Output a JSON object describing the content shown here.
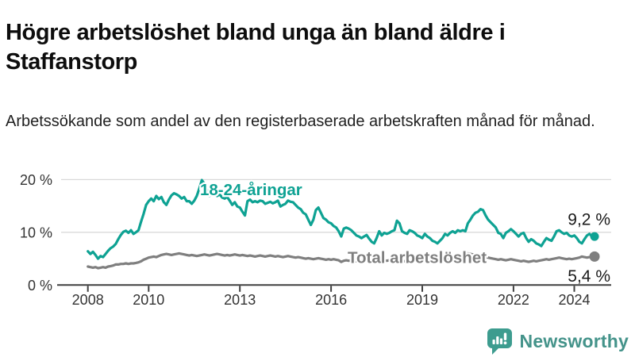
{
  "header": {
    "title": "Högre arbetslöshet bland unga än bland äldre i Staffanstorp",
    "subtitle": "Arbetssökande som andel av den registerbaserade arbetskraften månad för månad."
  },
  "chart_data": {
    "type": "line",
    "title": "",
    "xlabel": "",
    "ylabel": "",
    "x_axis": {
      "ticks": [
        2008,
        2010,
        2013,
        2016,
        2019,
        2022,
        2024
      ],
      "tick_labels": [
        "2008",
        "2010",
        "2013",
        "2016",
        "2019",
        "2022",
        "2024"
      ],
      "range": [
        2007.9,
        2025.2
      ]
    },
    "y_axis": {
      "ticks": [
        0,
        10,
        20
      ],
      "tick_labels": [
        "0 %",
        "10 %",
        "20 %"
      ],
      "range": [
        0,
        21
      ],
      "grid": true,
      "grid_color": "#d9d9d9",
      "axis_color": "#3f3f3f",
      "label_color": "#333333"
    },
    "series": [
      {
        "name": "18-24-åringar",
        "color": "#0ea293",
        "end_label": "9,2 %",
        "end_value": 9.2,
        "start_year": 2008,
        "step_months": 1,
        "values": [
          6.4,
          5.9,
          6.3,
          5.7,
          5.0,
          5.5,
          5.3,
          5.9,
          6.5,
          7.0,
          7.3,
          7.8,
          8.7,
          9.5,
          10.1,
          10.3,
          9.9,
          10.4,
          9.7,
          10.0,
          10.4,
          12.0,
          13.5,
          15.2,
          15.9,
          16.4,
          15.9,
          16.9,
          16.3,
          16.7,
          15.7,
          15.2,
          16.2,
          17.0,
          17.4,
          17.2,
          16.9,
          16.4,
          16.7,
          15.9,
          15.9,
          15.4,
          16.0,
          16.9,
          18.3,
          19.9,
          19.2,
          18.0,
          16.9,
          17.7,
          17.2,
          16.9,
          17.2,
          16.6,
          16.4,
          16.7,
          16.0,
          15.2,
          15.7,
          14.9,
          14.7,
          13.9,
          13.2,
          15.9,
          16.2,
          15.7,
          15.9,
          15.7,
          16.0,
          15.9,
          15.4,
          15.6,
          15.8,
          15.5,
          15.7,
          16.0,
          14.9,
          15.2,
          15.4,
          16.0,
          15.8,
          15.7,
          15.2,
          14.7,
          14.4,
          13.7,
          13.4,
          12.4,
          11.4,
          12.4,
          14.2,
          14.7,
          13.7,
          12.7,
          12.4,
          11.9,
          11.7,
          11.2,
          10.9,
          10.2,
          9.2,
          10.7,
          10.9,
          10.7,
          10.4,
          9.9,
          9.4,
          9.2,
          8.9,
          9.2,
          9.5,
          8.8,
          8.2,
          7.9,
          8.9,
          10.2,
          9.4,
          9.9,
          9.7,
          9.9,
          10.2,
          10.4,
          12.2,
          11.7,
          10.2,
          9.9,
          9.7,
          10.4,
          10.2,
          9.9,
          9.4,
          9.2,
          8.9,
          9.7,
          9.2,
          8.9,
          8.4,
          8.2,
          7.9,
          8.4,
          8.9,
          9.7,
          9.4,
          9.9,
          10.2,
          9.9,
          10.4,
          10.2,
          10.4,
          10.2,
          11.7,
          12.4,
          13.2,
          13.7,
          13.9,
          14.4,
          14.2,
          13.2,
          12.4,
          11.9,
          11.4,
          10.9,
          9.9,
          9.7,
          8.9,
          9.9,
          10.2,
          10.6,
          10.2,
          9.7,
          9.2,
          9.7,
          9.9,
          8.9,
          8.2,
          8.7,
          8.4,
          7.9,
          7.7,
          7.4,
          8.2,
          8.9,
          8.6,
          8.4,
          9.2,
          10.2,
          10.4,
          10.0,
          9.7,
          9.9,
          9.4,
          9.2,
          9.4,
          8.9,
          8.2,
          7.9,
          8.7,
          9.4,
          9.7,
          9.2,
          9.2
        ]
      },
      {
        "name": "Total arbetslöshet",
        "color": "#7f7f7f",
        "end_label": "5,4 %",
        "end_value": 5.4,
        "start_year": 2008,
        "step_months": 1,
        "values": [
          3.5,
          3.4,
          3.3,
          3.4,
          3.2,
          3.3,
          3.4,
          3.3,
          3.5,
          3.6,
          3.7,
          3.9,
          3.9,
          4.0,
          4.0,
          4.1,
          4.0,
          4.1,
          4.1,
          4.2,
          4.3,
          4.5,
          4.8,
          5.0,
          5.2,
          5.3,
          5.4,
          5.3,
          5.5,
          5.7,
          5.8,
          5.9,
          5.8,
          5.7,
          5.8,
          5.9,
          6.0,
          5.9,
          5.8,
          5.7,
          5.6,
          5.7,
          5.6,
          5.5,
          5.6,
          5.7,
          5.8,
          5.7,
          5.6,
          5.7,
          5.8,
          5.9,
          5.8,
          5.7,
          5.6,
          5.7,
          5.6,
          5.7,
          5.8,
          5.7,
          5.6,
          5.7,
          5.6,
          5.5,
          5.6,
          5.5,
          5.4,
          5.5,
          5.6,
          5.5,
          5.4,
          5.5,
          5.6,
          5.5,
          5.4,
          5.5,
          5.4,
          5.3,
          5.4,
          5.5,
          5.4,
          5.3,
          5.2,
          5.3,
          5.2,
          5.1,
          5.0,
          5.1,
          5.0,
          4.9,
          5.0,
          5.1,
          5.0,
          4.9,
          4.8,
          4.9,
          4.8,
          4.9,
          4.8,
          4.7,
          4.4,
          4.6,
          4.7,
          4.6,
          4.7,
          4.6,
          4.5,
          4.6,
          4.6,
          4.7,
          4.6,
          4.5,
          4.6,
          4.5,
          4.6,
          4.7,
          4.6,
          4.7,
          4.6,
          4.7,
          4.6,
          4.7,
          4.6,
          4.5,
          4.6,
          4.5,
          4.4,
          4.5,
          4.6,
          4.5,
          4.6,
          4.5,
          4.6,
          4.7,
          4.6,
          4.7,
          4.6,
          4.5,
          4.6,
          4.7,
          4.8,
          4.7,
          4.8,
          4.9,
          4.9,
          5.0,
          5.2,
          5.5,
          5.7,
          5.9,
          6.0,
          5.9,
          5.8,
          5.7,
          5.6,
          5.5,
          5.4,
          5.3,
          5.2,
          5.1,
          5.0,
          4.9,
          4.8,
          4.9,
          4.8,
          4.7,
          4.8,
          4.9,
          4.8,
          4.7,
          4.6,
          4.5,
          4.6,
          4.5,
          4.4,
          4.5,
          4.6,
          4.5,
          4.6,
          4.7,
          4.8,
          4.9,
          4.8,
          4.9,
          5.0,
          5.1,
          5.2,
          5.1,
          5.0,
          4.9,
          5.0,
          4.9,
          5.0,
          5.1,
          5.2,
          5.4,
          5.3,
          5.2,
          5.3,
          5.4,
          5.4
        ]
      }
    ],
    "legend_position": "inline-labels",
    "value_label_color": "#1a1a1a"
  },
  "footer": {
    "brand": "Newsworthy",
    "logo_color": "#3d9c8f",
    "brand_text_color": "#44938a"
  }
}
